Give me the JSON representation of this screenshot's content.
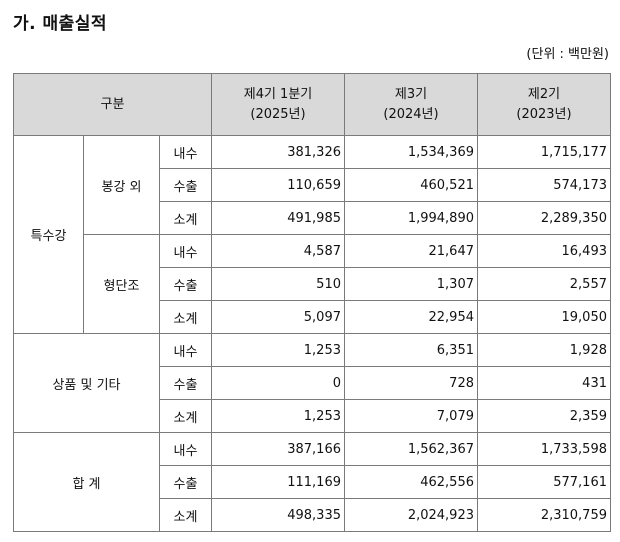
{
  "section_title": "가. 매출실적",
  "unit_note": "(단위 : 백만원)",
  "table": {
    "headers": {
      "category": "구분",
      "periods": [
        {
          "label": "제4기 1분기",
          "year": "(2025년)"
        },
        {
          "label": "제3기",
          "year": "(2024년)"
        },
        {
          "label": "제2기",
          "year": "(2023년)"
        }
      ]
    },
    "groups": [
      {
        "name": "특수강",
        "subgroups": [
          {
            "name": "봉강 외",
            "rows": [
              {
                "type": "내수",
                "values": [
                  "381,326",
                  "1,534,369",
                  "1,715,177"
                ]
              },
              {
                "type": "수출",
                "values": [
                  "110,659",
                  "460,521",
                  "574,173"
                ]
              },
              {
                "type": "소계",
                "values": [
                  "491,985",
                  "1,994,890",
                  "2,289,350"
                ]
              }
            ]
          },
          {
            "name": "형단조",
            "rows": [
              {
                "type": "내수",
                "values": [
                  "4,587",
                  "21,647",
                  "16,493"
                ]
              },
              {
                "type": "수출",
                "values": [
                  "510",
                  "1,307",
                  "2,557"
                ]
              },
              {
                "type": "소계",
                "values": [
                  "5,097",
                  "22,954",
                  "19,050"
                ]
              }
            ]
          }
        ]
      },
      {
        "name": "상품 및 기타",
        "rows": [
          {
            "type": "내수",
            "values": [
              "1,253",
              "6,351",
              "1,928"
            ]
          },
          {
            "type": "수출",
            "values": [
              "0",
              "728",
              "431"
            ]
          },
          {
            "type": "소계",
            "values": [
              "1,253",
              "7,079",
              "2,359"
            ]
          }
        ]
      },
      {
        "name": "합 계",
        "rows": [
          {
            "type": "내수",
            "values": [
              "387,166",
              "1,562,367",
              "1,733,598"
            ]
          },
          {
            "type": "수출",
            "values": [
              "111,169",
              "462,556",
              "577,161"
            ]
          },
          {
            "type": "소계",
            "values": [
              "498,335",
              "2,024,923",
              "2,310,759"
            ]
          }
        ]
      }
    ]
  }
}
